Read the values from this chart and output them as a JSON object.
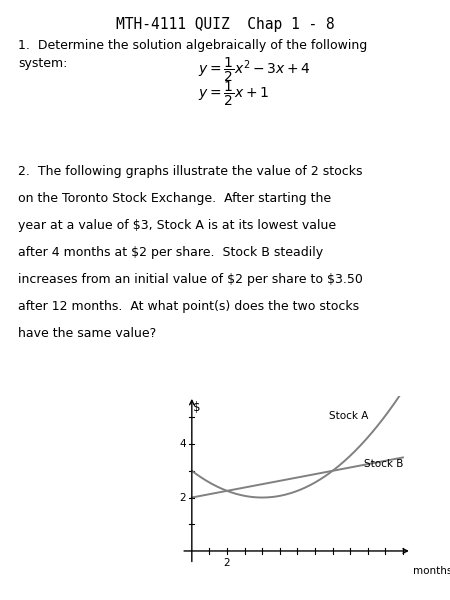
{
  "title": "MTH-4111 QUIZ  Chap 1 - 8",
  "q1_line1": "1.  Determine the solution algebraically of the following",
  "q1_line2": "system:",
  "q2_text_lines": [
    "2.  The following graphs illustrate the value of 2 stocks",
    "on the Toronto Stock Exchange.  After starting the",
    "year at a value of $3, Stock A is at its lowest value",
    "after 4 months at $2 per share.  Stock B steadily",
    "increases from an initial value of $2 per share to $3.50",
    "after 12 months.  At what point(s) does the two stocks",
    "have the same value?"
  ],
  "graph_xlabel": "months",
  "graph_ylabel": "$",
  "stock_a_label": "Stock A",
  "stock_b_label": "Stock B",
  "bg_color": "#ffffff",
  "line_color": "#808080",
  "font_color": "#000000"
}
